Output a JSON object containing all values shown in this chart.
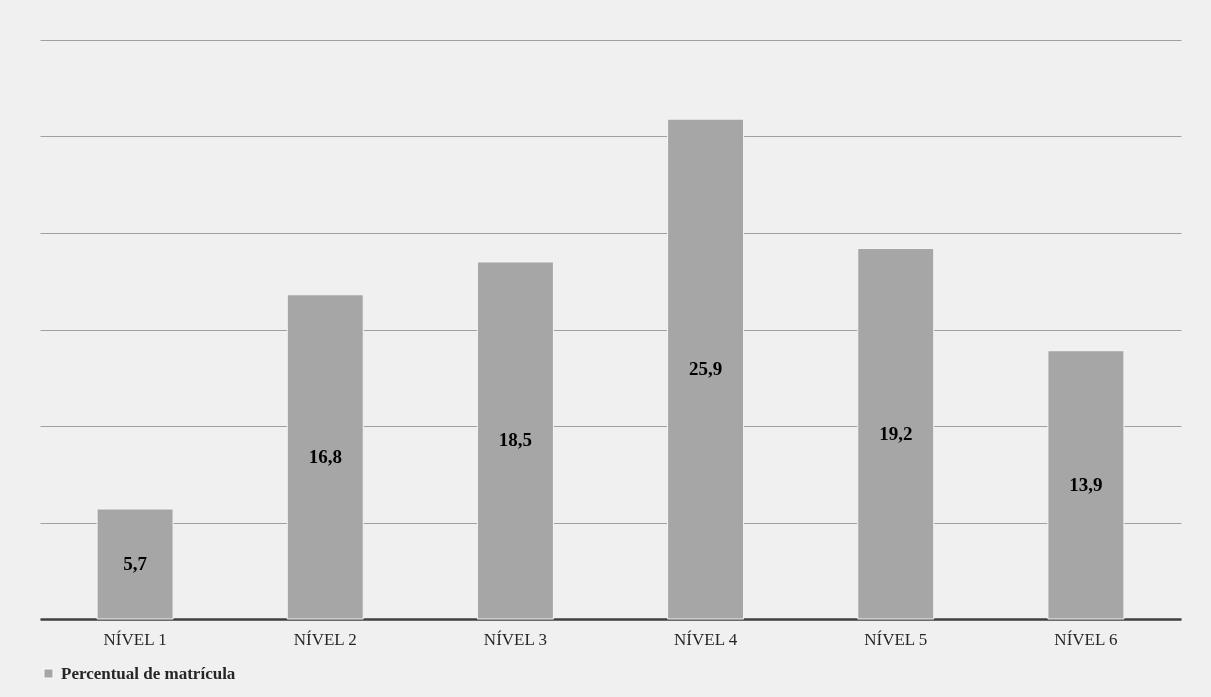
{
  "chart_data": {
    "type": "bar",
    "categories": [
      "NÍVEL 1",
      "NÍVEL 2",
      "NÍVEL 3",
      "NÍVEL 4",
      "NÍVEL 5",
      "NÍVEL 6"
    ],
    "series": [
      {
        "name": "Percentual de matrícula",
        "color": "#a6a6a6",
        "values": [
          5.7,
          16.8,
          18.5,
          25.9,
          19.2,
          13.9
        ],
        "value_labels": [
          "5,7",
          "16,8",
          "18,5",
          "25,9",
          "19,2",
          "13,9"
        ]
      }
    ],
    "ylim": [
      0,
      30
    ],
    "yticks": [
      {
        "value": 0,
        "label": null
      },
      {
        "value": 5,
        "label": null
      },
      {
        "value": 10,
        "label": null
      },
      {
        "value": 15,
        "label": null
      },
      {
        "value": 20,
        "label": null
      },
      {
        "value": 25,
        "label": null
      },
      {
        "value": 30,
        "label": null
      }
    ],
    "tick_labels": "x",
    "grid": "y",
    "legend": "bottom"
  }
}
